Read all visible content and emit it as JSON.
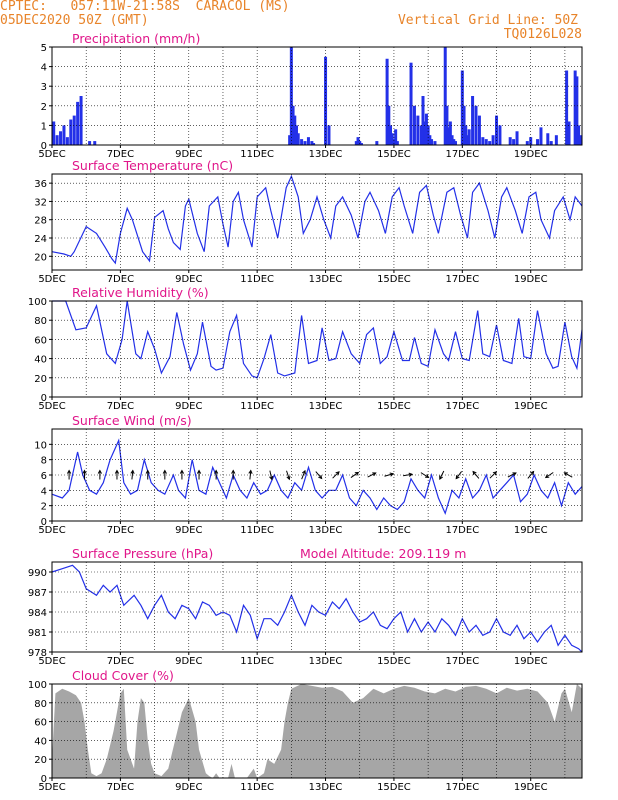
{
  "header": {
    "line1": "CPTEC:   057:11W-21:58S  CARACOL (MS)",
    "line2": "05DEC2020 50Z (GMT)",
    "grid_note": "Vertical Grid Line: 50Z",
    "code": "TQ0126L028"
  },
  "colors": {
    "header": "#e8842a",
    "title": "#e0168a",
    "line": "#2330e8",
    "bar": "#2330e8",
    "cloud": "#a6a6a6",
    "axis": "#000000"
  },
  "chart_data": [
    {
      "type": "bar",
      "title": "Precipitation (mm/h)",
      "series_color": "#2330e8",
      "x_unit": "days since 5DEC00Z",
      "xlim": [
        0,
        15.5
      ],
      "ylim": [
        0,
        5
      ],
      "yticks": [
        0,
        1,
        2,
        3,
        4,
        5
      ],
      "xtick_labels": [
        "5DEC",
        "7DEC",
        "9DEC",
        "11DEC",
        "13DEC",
        "15DEC",
        "17DEC",
        "19DEC"
      ],
      "xticks": [
        0,
        2,
        4,
        6,
        8,
        10,
        12,
        14
      ],
      "grid": true,
      "x": [
        0.05,
        0.15,
        0.25,
        0.35,
        0.45,
        0.55,
        0.65,
        0.75,
        0.85,
        1.1,
        1.25,
        6.95,
        7.0,
        7.05,
        7.1,
        7.15,
        7.2,
        7.3,
        7.4,
        7.5,
        7.6,
        7.65,
        8.0,
        8.1,
        8.9,
        8.95,
        9.0,
        9.05,
        9.5,
        9.8,
        9.85,
        9.9,
        9.95,
        10.0,
        10.05,
        10.1,
        10.5,
        10.6,
        10.7,
        10.8,
        10.85,
        10.9,
        10.95,
        11.0,
        11.05,
        11.1,
        11.2,
        11.5,
        11.55,
        11.6,
        11.65,
        11.7,
        11.75,
        11.8,
        12.0,
        12.05,
        12.1,
        12.15,
        12.2,
        12.3,
        12.4,
        12.5,
        12.6,
        12.7,
        12.8,
        12.9,
        13.0,
        13.1,
        13.4,
        13.5,
        13.6,
        13.9,
        14.0,
        14.2,
        14.3,
        14.5,
        14.6,
        14.75,
        15.05,
        15.12,
        15.3,
        15.35,
        15.4,
        15.45
      ],
      "values": [
        1.2,
        0.5,
        0.7,
        1.0,
        0.4,
        1.3,
        1.5,
        2.2,
        2.5,
        0.2,
        0.2,
        0.5,
        5.0,
        2.0,
        1.5,
        1.0,
        0.6,
        0.3,
        0.2,
        0.4,
        0.2,
        0.1,
        4.5,
        1.0,
        0.2,
        0.4,
        0.2,
        0.1,
        0.2,
        4.4,
        2.0,
        1.0,
        0.6,
        0.3,
        0.8,
        0.2,
        4.2,
        2.0,
        1.5,
        1.0,
        2.5,
        1.2,
        1.6,
        1.0,
        0.5,
        0.3,
        0.2,
        5.0,
        2.0,
        0.9,
        1.2,
        0.5,
        0.3,
        0.2,
        3.8,
        2.0,
        1.0,
        0.5,
        0.8,
        2.5,
        2.0,
        1.5,
        0.4,
        0.3,
        0.2,
        0.5,
        1.5,
        1.0,
        0.4,
        0.3,
        0.7,
        0.2,
        0.4,
        0.3,
        0.9,
        0.6,
        0.2,
        0.5,
        3.8,
        1.2,
        3.8,
        3.5,
        1.0,
        0.5
      ]
    },
    {
      "type": "line",
      "title": "Surface Temperature (nC)",
      "series_color": "#2330e8",
      "xlim": [
        0,
        15.5
      ],
      "ylim": [
        17,
        38
      ],
      "yticks": [
        20,
        24,
        28,
        32,
        36
      ],
      "xtick_labels": [
        "5DEC",
        "7DEC",
        "9DEC",
        "11DEC",
        "13DEC",
        "15DEC",
        "17DEC",
        "19DEC"
      ],
      "xticks": [
        0,
        2,
        4,
        6,
        8,
        10,
        12,
        14
      ],
      "x": [
        0,
        0.35,
        0.55,
        0.65,
        1.0,
        1.3,
        1.55,
        1.75,
        1.85,
        2.0,
        2.2,
        2.35,
        2.65,
        2.85,
        3.0,
        3.25,
        3.4,
        3.55,
        3.75,
        3.9,
        4.0,
        4.25,
        4.45,
        4.6,
        4.85,
        5.0,
        5.15,
        5.3,
        5.45,
        5.6,
        5.85,
        6.0,
        6.25,
        6.4,
        6.6,
        6.85,
        7.0,
        7.2,
        7.35,
        7.55,
        7.75,
        7.95,
        8.15,
        8.3,
        8.5,
        8.75,
        8.95,
        9.15,
        9.3,
        9.55,
        9.75,
        9.95,
        10.15,
        10.3,
        10.55,
        10.75,
        10.95,
        11.15,
        11.3,
        11.55,
        11.75,
        11.95,
        12.15,
        12.3,
        12.5,
        12.75,
        12.95,
        13.15,
        13.3,
        13.55,
        13.75,
        13.95,
        14.15,
        14.3,
        14.55,
        14.7,
        14.95,
        15.15,
        15.3,
        15.5
      ],
      "values": [
        21,
        20.5,
        20,
        21,
        26.5,
        25,
        22,
        19.5,
        18.5,
        25,
        30.5,
        28,
        21,
        19,
        28.5,
        30,
        26,
        23,
        21.5,
        31,
        32.5,
        25,
        21,
        31,
        33,
        27,
        22,
        32,
        34,
        28,
        22,
        33,
        35,
        30,
        24,
        35,
        37.5,
        33,
        25,
        28,
        33,
        28,
        24,
        31,
        33,
        29,
        24,
        32,
        34,
        30,
        25,
        33,
        35,
        31,
        25,
        34,
        35.5,
        29,
        25,
        34,
        35,
        29,
        24,
        34,
        36,
        30,
        24,
        33,
        35,
        30,
        25,
        33,
        34,
        28,
        24,
        30,
        33,
        28,
        33,
        31
      ]
    },
    {
      "type": "line",
      "title": "Relative Humidity (%)",
      "series_color": "#2330e8",
      "xlim": [
        0,
        15.5
      ],
      "ylim": [
        0,
        100
      ],
      "yticks": [
        0,
        20,
        40,
        60,
        80,
        100
      ],
      "xtick_labels": [
        "5DEC",
        "7DEC",
        "9DEC",
        "11DEC",
        "13DEC",
        "15DEC",
        "17DEC",
        "19DEC"
      ],
      "xticks": [
        0,
        2,
        4,
        6,
        8,
        10,
        12,
        14
      ],
      "x": [
        0,
        0.4,
        0.7,
        1.0,
        1.3,
        1.6,
        1.85,
        2.05,
        2.2,
        2.45,
        2.6,
        2.8,
        3.0,
        3.2,
        3.45,
        3.65,
        3.85,
        4.05,
        4.25,
        4.4,
        4.65,
        4.8,
        5.0,
        5.2,
        5.4,
        5.6,
        5.85,
        6.0,
        6.2,
        6.4,
        6.6,
        6.8,
        7.1,
        7.3,
        7.5,
        7.75,
        7.9,
        8.1,
        8.3,
        8.5,
        8.75,
        9.0,
        9.2,
        9.4,
        9.6,
        9.8,
        10.0,
        10.25,
        10.45,
        10.6,
        10.8,
        11.0,
        11.2,
        11.45,
        11.6,
        11.8,
        12.0,
        12.2,
        12.45,
        12.6,
        12.8,
        13.0,
        13.2,
        13.45,
        13.65,
        13.8,
        14.0,
        14.2,
        14.45,
        14.65,
        14.8,
        15.0,
        15.2,
        15.35,
        15.5
      ],
      "values": [
        100,
        100,
        70,
        72,
        95,
        45,
        35,
        60,
        100,
        45,
        40,
        68,
        50,
        25,
        42,
        88,
        55,
        28,
        45,
        78,
        32,
        28,
        30,
        68,
        85,
        35,
        22,
        20,
        40,
        65,
        25,
        22,
        25,
        85,
        35,
        38,
        72,
        38,
        40,
        68,
        45,
        35,
        65,
        72,
        35,
        42,
        68,
        38,
        38,
        62,
        35,
        32,
        70,
        45,
        38,
        68,
        40,
        38,
        90,
        45,
        42,
        75,
        38,
        35,
        82,
        42,
        40,
        90,
        45,
        30,
        32,
        78,
        42,
        30,
        70
      ]
    },
    {
      "type": "line",
      "title": "Surface Wind (m/s)",
      "series_color": "#2330e8",
      "xlim": [
        0,
        15.5
      ],
      "ylim": [
        0,
        12
      ],
      "yticks": [
        0,
        2,
        4,
        6,
        8,
        10
      ],
      "xtick_labels": [
        "5DEC",
        "7DEC",
        "9DEC",
        "11DEC",
        "13DEC",
        "15DEC",
        "17DEC",
        "19DEC"
      ],
      "xticks": [
        0,
        2,
        4,
        6,
        8,
        10,
        12,
        14
      ],
      "x": [
        0,
        0.3,
        0.5,
        0.75,
        0.9,
        1.1,
        1.3,
        1.5,
        1.7,
        1.95,
        2.1,
        2.3,
        2.5,
        2.7,
        2.9,
        3.1,
        3.3,
        3.55,
        3.7,
        3.9,
        4.1,
        4.3,
        4.5,
        4.7,
        4.9,
        5.1,
        5.3,
        5.5,
        5.7,
        5.9,
        6.1,
        6.3,
        6.5,
        6.7,
        6.9,
        7.1,
        7.3,
        7.5,
        7.7,
        7.9,
        8.1,
        8.3,
        8.5,
        8.7,
        8.9,
        9.1,
        9.3,
        9.5,
        9.7,
        9.9,
        10.1,
        10.3,
        10.5,
        10.7,
        10.9,
        11.1,
        11.3,
        11.5,
        11.7,
        11.9,
        12.1,
        12.3,
        12.5,
        12.7,
        12.9,
        13.1,
        13.3,
        13.5,
        13.7,
        13.9,
        14.1,
        14.3,
        14.5,
        14.7,
        14.9,
        15.1,
        15.3,
        15.5
      ],
      "values": [
        3.5,
        3,
        4,
        9,
        6,
        4,
        3.5,
        5,
        8,
        10.5,
        5,
        3.5,
        4,
        8,
        5,
        4,
        3.5,
        6,
        4,
        3,
        8,
        4,
        3.5,
        7,
        5,
        3,
        6,
        4,
        3,
        5,
        3.5,
        4,
        6,
        4,
        3,
        5,
        4,
        7,
        4,
        3,
        4,
        4,
        6,
        3,
        2,
        4,
        3,
        1.5,
        3,
        2,
        1.5,
        2.5,
        5.5,
        4,
        3,
        6,
        3,
        1,
        4,
        3,
        5.5,
        3,
        4,
        6,
        3,
        4,
        5,
        6,
        2.5,
        3.5,
        6,
        4,
        3,
        5,
        2,
        5,
        3.5,
        4.5
      ],
      "vector_x": [
        0.5,
        0.95,
        1.4,
        1.9,
        2.35,
        2.8,
        3.3,
        3.8,
        4.3,
        4.8,
        5.3,
        5.8,
        6.4,
        6.9,
        7.35,
        7.8,
        8.3,
        8.85,
        9.35,
        9.85,
        10.4,
        10.9,
        11.4,
        11.9,
        12.4,
        12.9,
        13.45,
        14.0,
        14.55,
        15.1
      ],
      "vector_u": [
        0,
        0,
        0,
        0,
        0.1,
        0,
        0,
        0,
        0,
        0,
        0,
        0.1,
        0.2,
        0.3,
        0.4,
        0.6,
        0.8,
        1.0,
        1.2,
        1.4,
        1.2,
        0.8,
        -0.4,
        -0.6,
        -0.5,
        0.5,
        0.8,
        0.5,
        -0.6,
        -0.9
      ],
      "vector_v": [
        1,
        1,
        1,
        1,
        1,
        1,
        1,
        1,
        1,
        1,
        1,
        1,
        -0.9,
        -0.9,
        1,
        -0.7,
        0.8,
        0.7,
        0.6,
        0.4,
        0.2,
        -0.5,
        -0.8,
        -0.8,
        0.6,
        0.5,
        0.4,
        0.6,
        -0.4,
        0.5
      ]
    },
    {
      "type": "line",
      "title": "Surface Pressure (hPa)",
      "subtitle": "Model Altitude: 209.119 m",
      "series_color": "#2330e8",
      "xlim": [
        0,
        15.5
      ],
      "ylim": [
        978,
        991.5
      ],
      "yticks": [
        978,
        981,
        984,
        987,
        990
      ],
      "xtick_labels": [
        "5DEC",
        "7DEC",
        "9DEC",
        "11DEC",
        "13DEC",
        "15DEC",
        "17DEC",
        "19DEC"
      ],
      "xticks": [
        0,
        2,
        4,
        6,
        8,
        10,
        12,
        14
      ],
      "x": [
        0,
        0.3,
        0.6,
        0.8,
        1.0,
        1.3,
        1.5,
        1.7,
        1.9,
        2.1,
        2.4,
        2.6,
        2.8,
        3.0,
        3.2,
        3.4,
        3.6,
        3.8,
        4.0,
        4.2,
        4.4,
        4.6,
        4.8,
        5.0,
        5.2,
        5.4,
        5.6,
        5.8,
        6.0,
        6.2,
        6.4,
        6.6,
        6.8,
        7.0,
        7.2,
        7.4,
        7.6,
        7.8,
        8.0,
        8.2,
        8.4,
        8.6,
        8.8,
        9.0,
        9.2,
        9.4,
        9.6,
        9.8,
        10.0,
        10.2,
        10.4,
        10.6,
        10.8,
        11.0,
        11.2,
        11.4,
        11.6,
        11.8,
        12.0,
        12.2,
        12.4,
        12.6,
        12.8,
        13.0,
        13.2,
        13.4,
        13.6,
        13.8,
        14.0,
        14.2,
        14.4,
        14.6,
        14.8,
        15.0,
        15.2,
        15.4,
        15.5
      ],
      "values": [
        990,
        990.5,
        991,
        990,
        987.5,
        986.5,
        988,
        987,
        988,
        985,
        986.5,
        985,
        983,
        985,
        986.5,
        984,
        983,
        985,
        984.5,
        983,
        985.5,
        985,
        983.5,
        984,
        983.5,
        981,
        985,
        983.5,
        980,
        983,
        983,
        982,
        984,
        986.5,
        984,
        982,
        985,
        984,
        983.5,
        985.5,
        984.5,
        986,
        984,
        982.5,
        983,
        984,
        982,
        981.5,
        983,
        984,
        981,
        983,
        981,
        982.5,
        981,
        983,
        982,
        980.5,
        983,
        981,
        982,
        980.5,
        981,
        983,
        981,
        980.5,
        982,
        980,
        981,
        979.5,
        981,
        982,
        979,
        980.5,
        979,
        978.5,
        978
      ]
    },
    {
      "type": "area",
      "title": "Cloud Cover (%)",
      "series_color": "#a6a6a6",
      "xlim": [
        0,
        15.5
      ],
      "ylim": [
        0,
        100
      ],
      "yticks": [
        0,
        20,
        40,
        60,
        80,
        100
      ],
      "xtick_labels": [
        "5DEC",
        "7DEC",
        "9DEC",
        "11DEC",
        "13DEC",
        "15DEC",
        "17DEC",
        "19DEC"
      ],
      "xticks": [
        0,
        2,
        4,
        6,
        8,
        10,
        12,
        14
      ],
      "x": [
        0,
        0.1,
        0.3,
        0.5,
        0.7,
        0.85,
        0.95,
        1.05,
        1.15,
        1.3,
        1.45,
        1.6,
        1.8,
        2.0,
        2.1,
        2.2,
        2.4,
        2.5,
        2.6,
        2.7,
        2.8,
        2.9,
        3.0,
        3.2,
        3.4,
        3.6,
        3.8,
        4.0,
        4.2,
        4.3,
        4.5,
        4.6,
        4.7,
        4.8,
        4.9,
        5.0,
        5.15,
        5.25,
        5.35,
        5.5,
        5.7,
        5.9,
        6.0,
        6.2,
        6.3,
        6.5,
        6.7,
        6.8,
        6.9,
        7.0,
        7.3,
        7.6,
        7.9,
        8.2,
        8.5,
        8.8,
        9.1,
        9.4,
        9.7,
        10.0,
        10.3,
        10.6,
        10.9,
        11.2,
        11.5,
        11.8,
        12.1,
        12.4,
        12.7,
        13.0,
        13.3,
        13.6,
        13.9,
        14.2,
        14.5,
        14.7,
        14.9,
        15.0,
        15.2,
        15.35,
        15.5
      ],
      "values": [
        20,
        90,
        95,
        92,
        88,
        80,
        60,
        30,
        5,
        2,
        5,
        20,
        50,
        90,
        95,
        30,
        10,
        60,
        85,
        80,
        40,
        15,
        5,
        2,
        10,
        40,
        70,
        85,
        60,
        30,
        5,
        2,
        0,
        5,
        0,
        0,
        0,
        15,
        0,
        0,
        0,
        10,
        0,
        5,
        20,
        15,
        30,
        60,
        80,
        95,
        100,
        98,
        96,
        97,
        92,
        80,
        85,
        95,
        90,
        95,
        98,
        96,
        92,
        90,
        95,
        92,
        97,
        98,
        95,
        90,
        96,
        93,
        95,
        92,
        80,
        60,
        90,
        95,
        70,
        100,
        95
      ]
    }
  ]
}
